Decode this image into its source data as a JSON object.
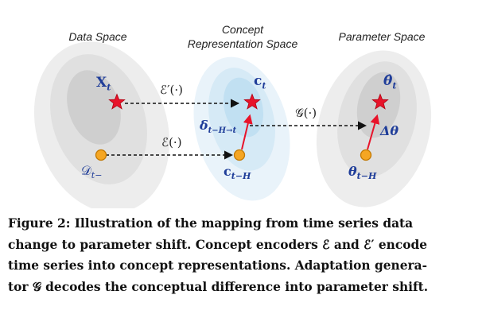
{
  "spaces": {
    "data": {
      "title": "Data Space"
    },
    "concept": {
      "title_line1": "Concept",
      "title_line2": "Representation Space"
    },
    "parameter": {
      "title": "Parameter Space"
    }
  },
  "nodes": {
    "x_t": {
      "main": "X",
      "sub": "t"
    },
    "d_prev": {
      "main": "𝒟",
      "sub": "t−"
    },
    "c_t": {
      "main": "c",
      "sub": "t"
    },
    "c_prev": {
      "main": "c",
      "sub": "t−H"
    },
    "delta": {
      "main": "δ",
      "sub": "t−H→t"
    },
    "theta_hat": {
      "main": "θ̂",
      "sub": "t"
    },
    "theta_prev": {
      "main": "θ",
      "sub": "t−H"
    },
    "delta_theta": {
      "main": "Δθ"
    }
  },
  "operators": {
    "e_prime": "ℰ′(·)",
    "e": "ℰ(·)",
    "g": "𝒢(·)"
  },
  "colors": {
    "star": "#e8132a",
    "circle_fill": "#f5a623",
    "circle_stroke": "#d08000",
    "arrow_red": "#e8132a",
    "math_blue": "#1f3d99",
    "ellipse_gray": "#e5e5e5",
    "ellipse_blue": "#d9ecf7"
  },
  "caption": {
    "line1": "Figure 2: Illustration of the mapping from time series data",
    "line2": "change to parameter shift. Concept encoders ℰ and ℰ′ encode",
    "line3": "time series into concept representations. Adaptation genera-",
    "line4": "tor 𝒢 decodes the conceptual difference into parameter shift."
  }
}
